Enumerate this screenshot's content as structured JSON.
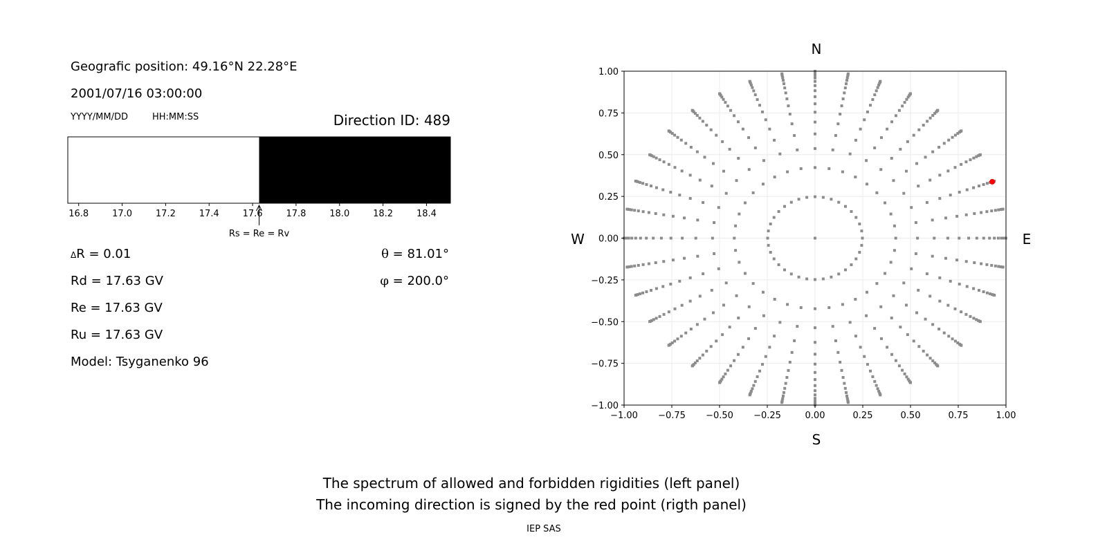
{
  "info": {
    "position": "Geografic position: 49.16°N 22.28°E",
    "datetime": "2001/07/16 03:00:00",
    "date_format": "YYYY/MM/DD",
    "time_format": "HH:MM:SS",
    "direction_id": "Direction ID: 489",
    "delta_r_symbol": "Δ",
    "delta_r": "R = 0.01",
    "rd": "Rd = 17.63 GV",
    "re": "Re = 17.63 GV",
    "ru": "Ru = 17.63 GV",
    "model": "Model: Tsyganenko 96",
    "theta_symbol": "θ",
    "theta": " = 81.01°",
    "phi_symbol": "φ",
    "phi": " = 200.0°"
  },
  "captions": {
    "line1": "The spectrum of allowed and forbidden rigidities (left panel)",
    "line2": "The incoming direction is signed by the red point (rigth panel)",
    "credit": "IEP SAS"
  },
  "chart_data": [
    {
      "type": "bar",
      "xlim": [
        16.75,
        18.51
      ],
      "ticks": [
        "16.8",
        "17.0",
        "17.2",
        "17.4",
        "17.6",
        "17.8",
        "18.0",
        "18.2",
        "18.4"
      ],
      "segments": [
        {
          "from": 16.75,
          "to": 17.63,
          "state": "allowed",
          "color": "#ffffff"
        },
        {
          "from": 17.63,
          "to": 18.51,
          "state": "forbidden",
          "color": "#000000"
        }
      ],
      "annotation": {
        "x": 17.63,
        "text": "Rs = Re = Rv"
      }
    },
    {
      "type": "scatter",
      "xlim": [
        -1.0,
        1.0
      ],
      "ylim": [
        -1.0,
        1.0
      ],
      "grid": true,
      "ticks": [
        "−1.00",
        "−0.75",
        "−0.50",
        "−0.25",
        "0.00",
        "0.25",
        "0.50",
        "0.75",
        "1.00"
      ],
      "direction_labels": {
        "north": "N",
        "south": "S",
        "west": "W",
        "east": "E"
      },
      "point_color": "#8c8c8c",
      "highlight_color": "#ff0000",
      "zenith_cos": [
        1.0,
        0.96875,
        0.90625,
        0.84375,
        0.78125,
        0.71875,
        0.65625,
        0.59375,
        0.53125,
        0.46875,
        0.40625,
        0.34375,
        0.28125,
        0.21875,
        0.15625,
        0.09375,
        0.03125
      ],
      "azimuth_step_deg": 10,
      "highlight": {
        "theta_deg": 81.01,
        "phi_deg": 200.0
      }
    }
  ]
}
